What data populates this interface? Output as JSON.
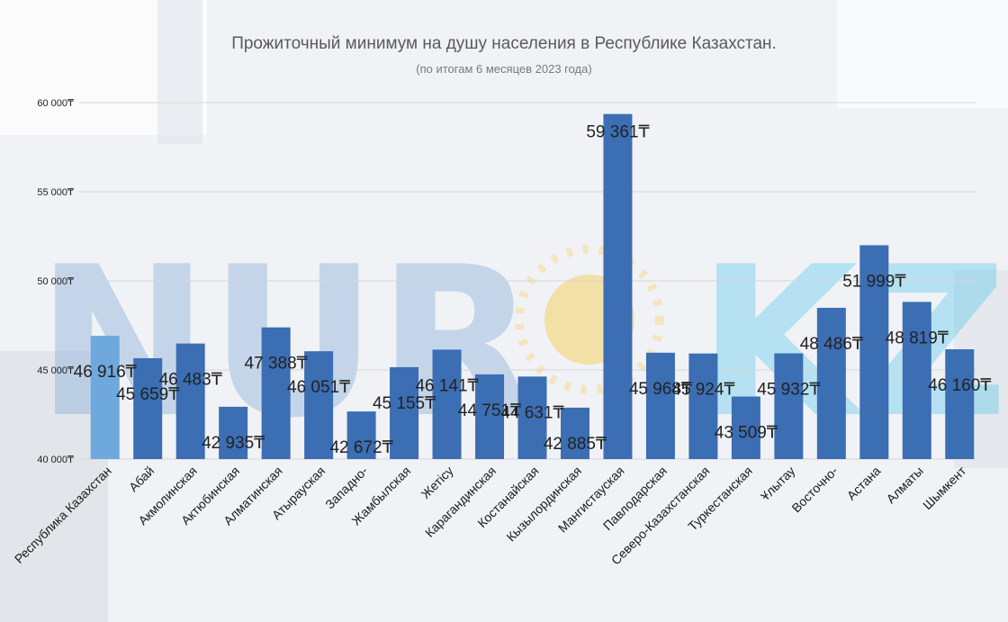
{
  "watermark": {
    "left": "NUR",
    "right": "KZ"
  },
  "chart_data": {
    "type": "bar",
    "title": "Прожиточный минимум на душу населения в Республике Казахстан.",
    "subtitle": "(по итогам 6 месяцев 2023 года)",
    "ylim": [
      40000,
      60000
    ],
    "yticks": [
      40000,
      45000,
      50000,
      55000,
      60000
    ],
    "ytick_labels": [
      "40 000₸",
      "45 000₸",
      "50 000₸",
      "55 000₸",
      "60 000₸"
    ],
    "grid": true,
    "categories": [
      "Республика Казахстан",
      "Абай",
      "Акмолинская",
      "Актюбинская",
      "Алматинская",
      "Атырауская",
      "Западно-",
      "Жамбылская",
      "Жетісу",
      "Карагандинская",
      "Костанайская",
      "Кызылординская",
      "Мангистауская",
      "Павлодарская",
      "Северо-Казахстанская",
      "Туркестанская",
      "Ұлытау",
      "Восточно-",
      "Астана",
      "Алматы",
      "Шымкент"
    ],
    "values": [
      46916,
      45659,
      46483,
      42935,
      47388,
      46051,
      42672,
      45155,
      46141,
      44751,
      44631,
      42885,
      59361,
      45968,
      45924,
      43509,
      45932,
      48486,
      51999,
      48819,
      46160
    ],
    "value_labels": [
      "46 916₸",
      "45 659₸",
      "46 483₸",
      "42 935₸",
      "47 388₸",
      "46 051₸",
      "42 672₸",
      "45 155₸",
      "46 141₸",
      "44 751₸",
      "44 631₸",
      "42 885₸",
      "59 361₸",
      "45 968₸",
      "45 924₸",
      "43 509₸",
      "45 932₸",
      "48 486₸",
      "51 999₸",
      "48 819₸",
      "46 160₸"
    ],
    "colors": {
      "highlight": "#6fa8dc",
      "bar": "#3c6eb4",
      "grid": "#d6d6d6"
    }
  }
}
